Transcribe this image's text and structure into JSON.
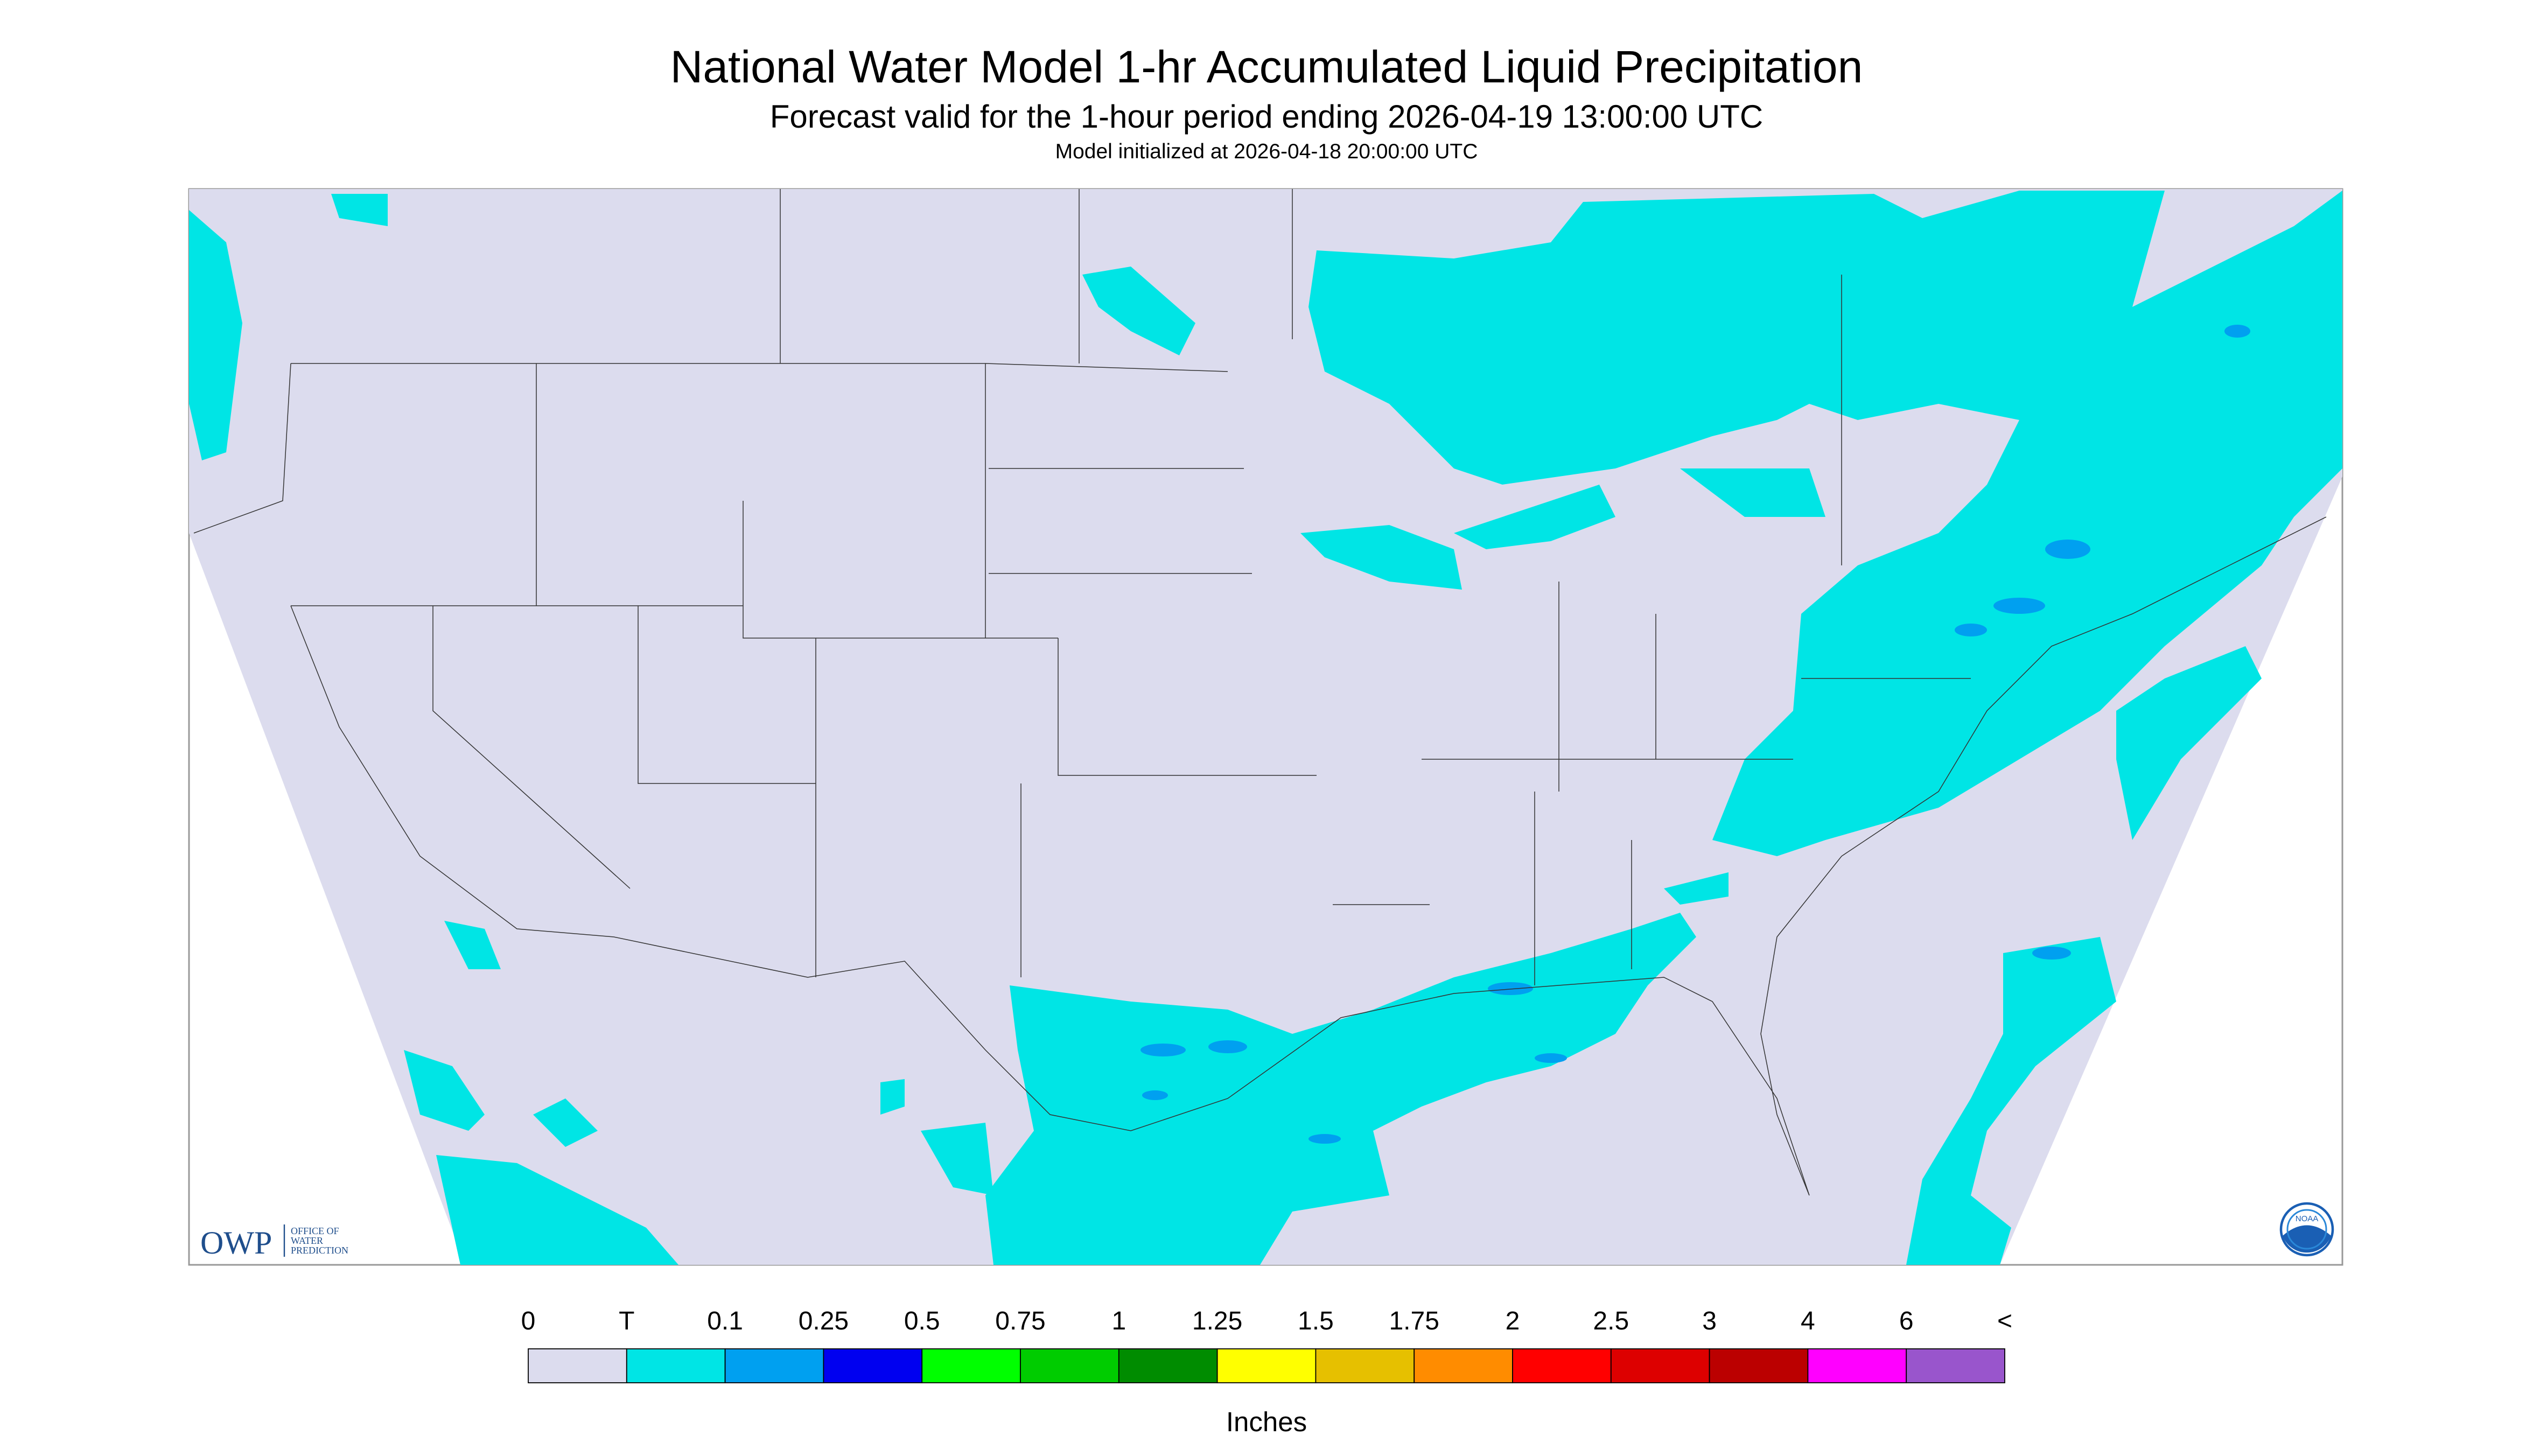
{
  "header": {
    "title": "National Water Model 1-hr Accumulated Liquid Precipitation",
    "subtitle": "Forecast valid for the 1-hour period ending 2026-04-19 13:00:00 UTC",
    "initialized": "Model initialized at 2026-04-18 20:00:00 UTC"
  },
  "logo": {
    "owp": "OWP",
    "office": [
      "OFFICE OF",
      "WATER",
      "PREDICTION"
    ],
    "noaa": "NOAA"
  },
  "legend": {
    "labels": [
      "0",
      "T",
      "0.1",
      "0.25",
      "0.5",
      "0.75",
      "1",
      "1.25",
      "1.5",
      "1.75",
      "2",
      "2.5",
      "3",
      "4",
      "6",
      "<"
    ],
    "colors": [
      "#dcdcee",
      "#00e5e5",
      "#00a0f0",
      "#0000f0",
      "#00ff00",
      "#00cc00",
      "#008c00",
      "#ffff00",
      "#e6c000",
      "#ff8c00",
      "#ff0000",
      "#dd0000",
      "#bb0000",
      "#ff00ff",
      "#9955cc"
    ],
    "unit": "Inches"
  }
}
